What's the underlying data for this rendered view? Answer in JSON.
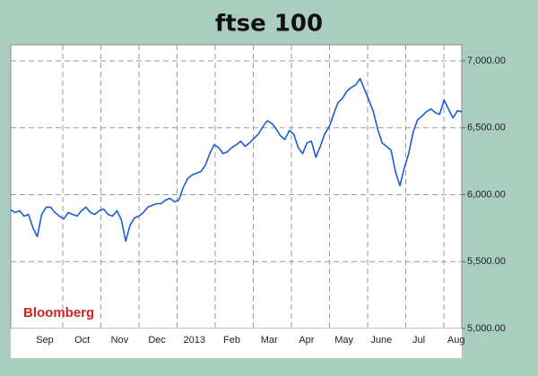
{
  "chart_data": {
    "type": "line",
    "title": "ftse 100",
    "annotation": "Bloomberg",
    "month_labels": [
      "Sep",
      "Oct",
      "Nov",
      "Dec",
      "2013",
      "Feb",
      "Mar",
      "Apr",
      "May",
      "June",
      "Jul",
      "Aug"
    ],
    "color": "#1a5fd0",
    "values": [
      5887,
      5867,
      5880,
      5840,
      5853,
      5753,
      5687,
      5853,
      5907,
      5907,
      5867,
      5840,
      5820,
      5867,
      5853,
      5840,
      5880,
      5907,
      5867,
      5853,
      5880,
      5893,
      5853,
      5840,
      5880,
      5813,
      5653,
      5773,
      5827,
      5840,
      5867,
      5907,
      5920,
      5933,
      5933,
      5960,
      5973,
      5947,
      5960,
      6053,
      6120,
      6147,
      6160,
      6173,
      6220,
      6307,
      6373,
      6353,
      6307,
      6320,
      6353,
      6373,
      6400,
      6360,
      6387,
      6420,
      6453,
      6507,
      6553,
      6533,
      6493,
      6440,
      6413,
      6480,
      6453,
      6353,
      6307,
      6387,
      6400,
      6280,
      6360,
      6453,
      6507,
      6600,
      6687,
      6720,
      6773,
      6800,
      6820,
      6867,
      6787,
      6707,
      6620,
      6487,
      6387,
      6360,
      6333,
      6173,
      6067,
      6200,
      6307,
      6467,
      6560,
      6587,
      6620,
      6640,
      6613,
      6600,
      6707,
      6640,
      6573,
      6627,
      6620
    ],
    "ylim": [
      5000,
      7120
    ],
    "yticks": [
      {
        "value": 5000,
        "label": "5,000.00"
      },
      {
        "value": 5500,
        "label": "5,500.00"
      },
      {
        "value": 6000,
        "label": "6,000.00"
      },
      {
        "value": 6500,
        "label": "6,500.00"
      },
      {
        "value": 7000,
        "label": "7,000.00"
      }
    ],
    "grid": true
  }
}
